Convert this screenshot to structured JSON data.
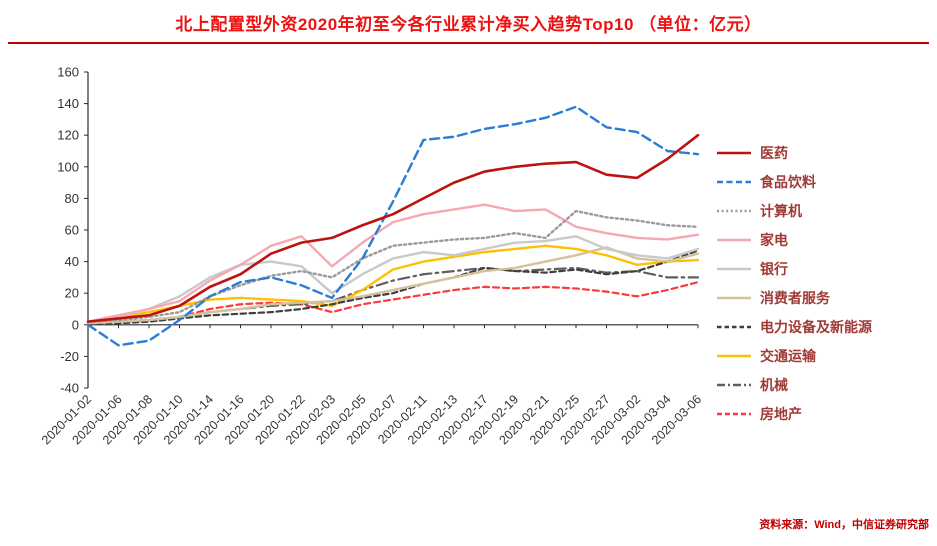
{
  "title": "北上配置型外资2020年初至今各行业累计净买入趋势Top10 （单位：亿元）",
  "source": "资料来源：Wind，中信证券研究部",
  "colors": {
    "title": "#ee1111",
    "title_rule": "#c00000",
    "axis_line": "#2b2b2b",
    "axis_text": "#333333",
    "legend_text": "#a03a36",
    "source_text": "#c00000",
    "background": "#ffffff"
  },
  "chart_data": {
    "type": "line",
    "title": "北上配置型外资2020年初至今各行业累计净买入趋势Top10",
    "unit": "亿元",
    "ylim": [
      -40,
      160
    ],
    "ytick_step": 20,
    "grid": false,
    "legend_position": "right",
    "x": [
      "2020-01-02",
      "2020-01-06",
      "2020-01-08",
      "2020-01-10",
      "2020-01-14",
      "2020-01-16",
      "2020-01-20",
      "2020-01-22",
      "2020-02-03",
      "2020-02-05",
      "2020-02-07",
      "2020-02-11",
      "2020-02-13",
      "2020-02-17",
      "2020-02-19",
      "2020-02-21",
      "2020-02-25",
      "2020-02-27",
      "2020-03-02",
      "2020-03-04",
      "2020-03-06"
    ],
    "series": [
      {
        "id": "pharma",
        "name": "医药",
        "color": "#bc1310",
        "style": "solid",
        "width": 2.6,
        "values": [
          2,
          4,
          6,
          12,
          24,
          32,
          45,
          52,
          55,
          63,
          70,
          80,
          90,
          97,
          100,
          102,
          103,
          95,
          93,
          105,
          120
        ]
      },
      {
        "id": "food-beverage",
        "name": "食品饮料",
        "color": "#2b7cd3",
        "style": "dashed",
        "width": 2.4,
        "values": [
          0,
          -13,
          -10,
          3,
          18,
          27,
          30,
          25,
          17,
          42,
          78,
          117,
          119,
          124,
          127,
          131,
          138,
          125,
          122,
          110,
          108
        ]
      },
      {
        "id": "computer",
        "name": "计算机",
        "color": "#9a9a9a",
        "style": "dotted",
        "width": 2.4,
        "values": [
          2,
          3,
          5,
          8,
          18,
          25,
          31,
          34,
          30,
          42,
          50,
          52,
          54,
          55,
          58,
          55,
          72,
          68,
          66,
          63,
          62
        ]
      },
      {
        "id": "home-appliance",
        "name": "家电",
        "color": "#f5a8b2",
        "style": "solid",
        "width": 2.4,
        "values": [
          2,
          6,
          10,
          15,
          28,
          38,
          50,
          56,
          37,
          52,
          65,
          70,
          73,
          76,
          72,
          73,
          62,
          58,
          55,
          54,
          57
        ]
      },
      {
        "id": "bank",
        "name": "银行",
        "color": "#c9c9c9",
        "style": "solid",
        "width": 2.4,
        "values": [
          2,
          5,
          10,
          18,
          30,
          38,
          40,
          37,
          20,
          32,
          42,
          46,
          44,
          48,
          52,
          53,
          56,
          48,
          44,
          42,
          48
        ]
      },
      {
        "id": "consumer-services",
        "name": "消费者服务",
        "color": "#d4c29c",
        "style": "solid",
        "width": 2.4,
        "values": [
          1,
          2,
          3,
          5,
          8,
          10,
          13,
          14,
          15,
          18,
          22,
          26,
          30,
          34,
          36,
          40,
          44,
          49,
          42,
          40,
          45
        ]
      },
      {
        "id": "power-new-energy",
        "name": "电力设备及新能源",
        "color": "#3f3f3f",
        "style": "shortdash",
        "width": 2.2,
        "values": [
          1,
          1,
          2,
          4,
          6,
          7,
          8,
          10,
          13,
          17,
          20,
          26,
          30,
          36,
          34,
          33,
          35,
          32,
          34,
          40,
          47
        ]
      },
      {
        "id": "transportation",
        "name": "交通运输",
        "color": "#ffc000",
        "style": "solid",
        "width": 2.4,
        "values": [
          2,
          5,
          8,
          12,
          16,
          17,
          16,
          15,
          12,
          22,
          35,
          40,
          43,
          46,
          48,
          50,
          48,
          44,
          38,
          40,
          41
        ]
      },
      {
        "id": "machinery",
        "name": "机械",
        "color": "#5f5f5f",
        "style": "dashdot",
        "width": 2.2,
        "values": [
          1,
          2,
          3,
          5,
          8,
          10,
          12,
          13,
          15,
          22,
          28,
          32,
          34,
          36,
          34,
          35,
          36,
          33,
          34,
          30,
          30
        ]
      },
      {
        "id": "real-estate",
        "name": "房地产",
        "color": "#fb3b3b",
        "style": "dashed2",
        "width": 2.2,
        "values": [
          1,
          2,
          3,
          5,
          10,
          13,
          14,
          13,
          8,
          13,
          16,
          19,
          22,
          24,
          23,
          24,
          23,
          21,
          18,
          22,
          27
        ]
      }
    ]
  }
}
